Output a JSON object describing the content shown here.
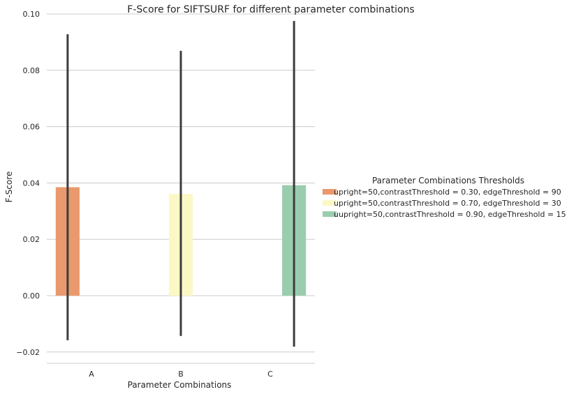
{
  "chart_data": {
    "type": "bar",
    "title": "F-Score for SIFTSURF for different parameter combinations",
    "xlabel": "Parameter Combinations",
    "ylabel": "F-Score",
    "categories": [
      "A",
      "B",
      "C"
    ],
    "ylim": [
      -0.024,
      0.1
    ],
    "yticks": [
      -0.02,
      0.0,
      0.02,
      0.04,
      0.06,
      0.08,
      0.1
    ],
    "ytick_labels": [
      "−0.02",
      "0.00",
      "0.02",
      "0.04",
      "0.06",
      "0.08",
      "0.10"
    ],
    "grid": "horizontal",
    "legend": {
      "title": "Parameter Combinations Thresholds",
      "placement": "right"
    },
    "series": [
      {
        "name": "upright=50,contrastThreshold = 0.30, edgeThreshold = 90",
        "color": "#e9996d",
        "values": [
          0.0385,
          null,
          null
        ],
        "ci": [
          [
            -0.0158,
            0.0928
          ],
          null,
          null
        ]
      },
      {
        "name": "upright=50,contrastThreshold = 0.70, edgeThreshold = 30",
        "color": "#fbf8c6",
        "values": [
          null,
          0.0361,
          null
        ],
        "ci": [
          null,
          [
            -0.0143,
            0.0869
          ],
          null
        ]
      },
      {
        "name": "uupright=50,contrastThreshold = 0.90, edgeThreshold = 15",
        "color": "#99cdae",
        "values": [
          null,
          null,
          0.0392
        ],
        "ci": [
          null,
          null,
          [
            -0.0181,
            0.0975
          ]
        ]
      }
    ]
  }
}
